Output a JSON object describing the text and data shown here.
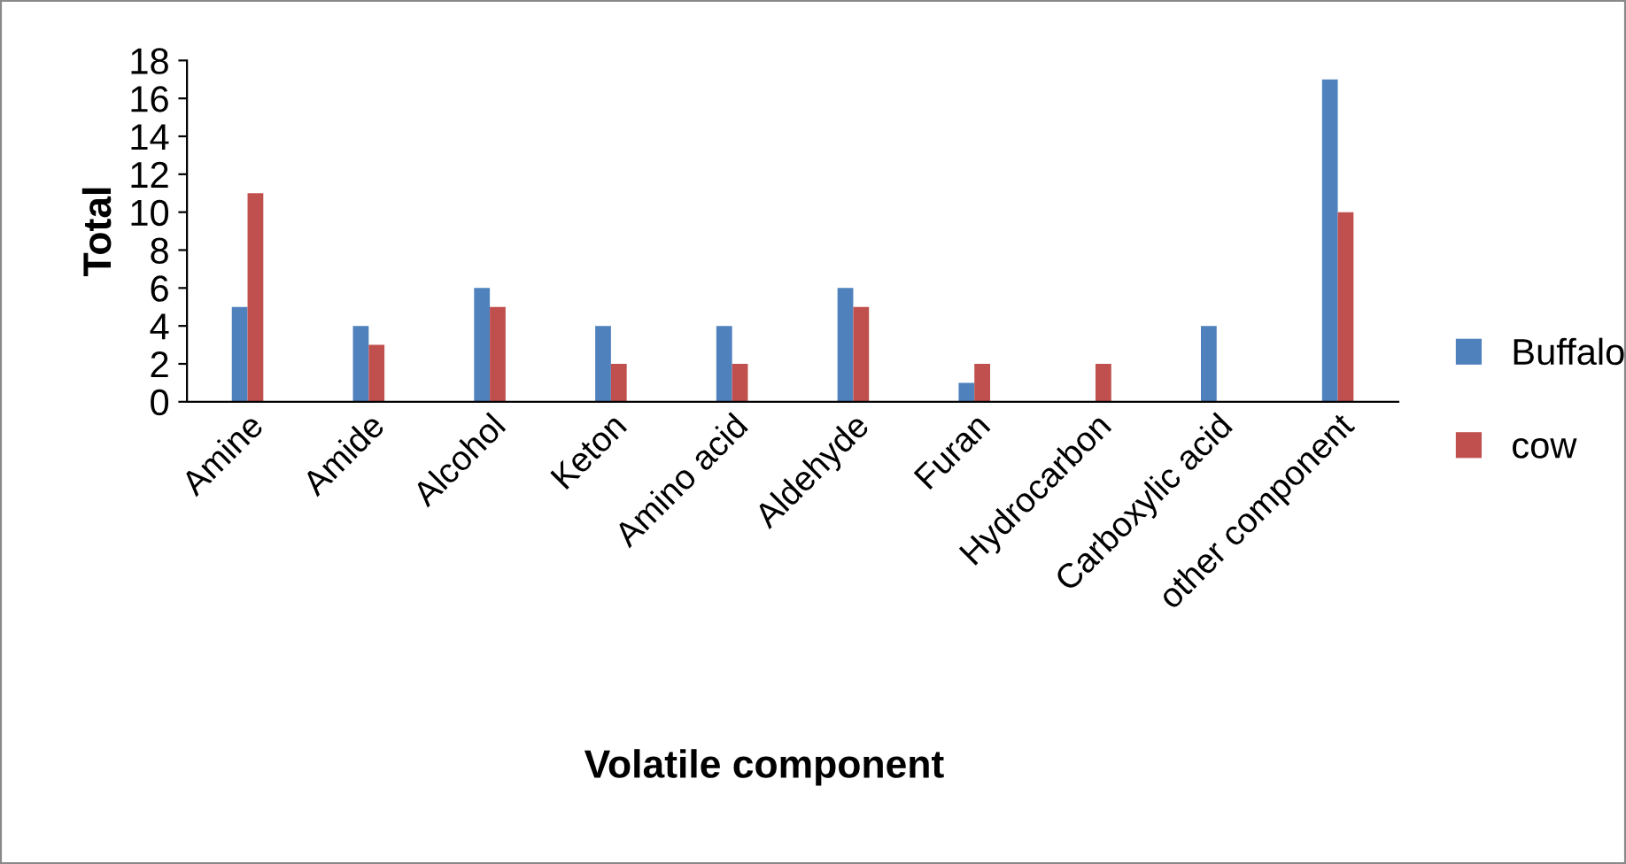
{
  "chart_data": {
    "type": "bar",
    "xlabel": "Volatile component",
    "ylabel": "Total",
    "categories": [
      "Amine",
      "Amide",
      "Alcohol",
      "Keton",
      "Amino acid",
      "Aldehyde",
      "Furan",
      "Hydrocarbon",
      "Carboxylic acid",
      "other component"
    ],
    "series": [
      {
        "name": "Buffalo",
        "color": "#4f81bd",
        "values": [
          5,
          4,
          6,
          4,
          4,
          6,
          1,
          0,
          4,
          17
        ]
      },
      {
        "name": "cow",
        "color": "#c0504d",
        "values": [
          11,
          3,
          5,
          2,
          2,
          5,
          2,
          2,
          0,
          10
        ]
      }
    ],
    "ylim": [
      0,
      18
    ],
    "yticks": [
      0,
      2,
      4,
      6,
      8,
      10,
      12,
      14,
      16,
      18
    ],
    "grid": false,
    "legend": "right"
  }
}
